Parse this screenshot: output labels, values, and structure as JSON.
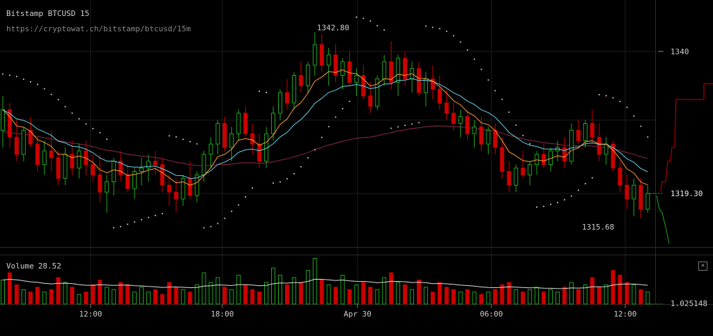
{
  "header": {
    "title": "Bitstamp BTCUSD 15",
    "url": "https://cryptowat.ch/bitstamp/btcusd/15m"
  },
  "volume": {
    "label": "Volume",
    "value": "28.52",
    "axis_label": "1.025148"
  },
  "colors": {
    "up": "#1fa81f",
    "down": "#cc0000",
    "ema_fast": "#ff9a3a",
    "ema_mid": "#66d4e8",
    "sma_slow": "#8c2a48",
    "sar": "#d8d8d8",
    "grid": "#1e1e1e",
    "vol_ma": "#dddddd",
    "depth": "#cc0000",
    "depth_bid": "#1fa81f"
  },
  "icons": {
    "close": "close-icon"
  },
  "chart_data": {
    "type": "candlestick",
    "title": "Bitstamp BTCUSD 15",
    "subtitle": "https://cryptowat.ch/bitstamp/btcusd/15m",
    "x_ticks": [
      "12:00",
      "18:00",
      "Apr 30",
      "06:00",
      "12:00"
    ],
    "y_ticks": [
      1340
    ],
    "ylim": [
      1311.5,
      1347.5
    ],
    "last_price": 1319.3,
    "annotations": [
      {
        "label": "1342.80",
        "kind": "high"
      },
      {
        "label": "1315.68",
        "kind": "low"
      }
    ],
    "candles": [
      [
        1328.5,
        1333.5,
        1326,
        1331.5,
        1.0
      ],
      [
        1331.5,
        1332.5,
        1326,
        1327.5,
        1.3
      ],
      [
        1327.5,
        1330,
        1324,
        1325,
        0.8
      ],
      [
        1325,
        1329,
        1324,
        1328.5,
        0.6
      ],
      [
        1328.5,
        1330.5,
        1326,
        1326.5,
        0.5
      ],
      [
        1326.5,
        1327.5,
        1322.5,
        1323.5,
        0.7
      ],
      [
        1323.5,
        1327,
        1322,
        1325.5,
        0.5
      ],
      [
        1325.5,
        1328.5,
        1322.5,
        1324.5,
        0.6
      ],
      [
        1324.5,
        1325.5,
        1320.5,
        1321.5,
        1.1
      ],
      [
        1321.5,
        1326,
        1320.5,
        1325,
        0.9
      ],
      [
        1325,
        1327,
        1322,
        1323,
        0.7
      ],
      [
        1323,
        1326.5,
        1321.5,
        1325.5,
        0.4
      ],
      [
        1325.5,
        1327,
        1322,
        1323.5,
        0.5
      ],
      [
        1323.5,
        1325,
        1321,
        1322,
        0.8
      ],
      [
        1322,
        1325,
        1318,
        1319.5,
        1.0
      ],
      [
        1319.5,
        1322,
        1316.5,
        1321,
        0.7
      ],
      [
        1321,
        1324.5,
        1319,
        1324,
        0.6
      ],
      [
        1324,
        1325.5,
        1321,
        1322,
        0.9
      ],
      [
        1322,
        1323.5,
        1319.5,
        1320,
        0.8
      ],
      [
        1320,
        1323,
        1318.5,
        1322.5,
        0.5
      ],
      [
        1322.5,
        1324.5,
        1320.5,
        1323,
        0.7
      ],
      [
        1323,
        1325,
        1321,
        1324,
        0.5
      ],
      [
        1324,
        1325.5,
        1322,
        1323.5,
        0.6
      ],
      [
        1323.5,
        1324.5,
        1319.5,
        1320.5,
        0.4
      ],
      [
        1320.5,
        1322,
        1317.5,
        1319.5,
        0.9
      ],
      [
        1319.5,
        1321.5,
        1316.5,
        1318.5,
        0.7
      ],
      [
        1318.5,
        1322,
        1317.5,
        1321.5,
        0.6
      ],
      [
        1321.5,
        1324,
        1318.5,
        1319,
        0.5
      ],
      [
        1319,
        1322.5,
        1318,
        1322,
        0.8
      ],
      [
        1322,
        1325.5,
        1321,
        1325,
        1.3
      ],
      [
        1325,
        1327.5,
        1323,
        1326.5,
        0.9
      ],
      [
        1326.5,
        1330,
        1325,
        1329.5,
        1.1
      ],
      [
        1329.5,
        1330.5,
        1325.5,
        1326,
        0.7
      ],
      [
        1326,
        1329,
        1324,
        1328,
        0.6
      ],
      [
        1328,
        1331.5,
        1327,
        1331,
        1.2
      ],
      [
        1331,
        1332,
        1327.5,
        1328,
        0.8
      ],
      [
        1328,
        1329.5,
        1325,
        1326.5,
        0.6
      ],
      [
        1326.5,
        1328,
        1323,
        1324,
        0.5
      ],
      [
        1324,
        1329,
        1323,
        1328,
        0.9
      ],
      [
        1328,
        1332,
        1327,
        1331,
        1.5
      ],
      [
        1331,
        1334.5,
        1330,
        1334,
        1.2
      ],
      [
        1334,
        1336,
        1331.5,
        1332.5,
        0.8
      ],
      [
        1332.5,
        1337,
        1331.5,
        1336.5,
        1.1
      ],
      [
        1336.5,
        1338.5,
        1334,
        1335,
        0.9
      ],
      [
        1335,
        1338.5,
        1334,
        1338,
        1.4
      ],
      [
        1338,
        1342.8,
        1336.5,
        1341,
        1.9
      ],
      [
        1341,
        1342.5,
        1337,
        1338,
        1.0
      ],
      [
        1338,
        1340.5,
        1335,
        1339.5,
        0.8
      ],
      [
        1339.5,
        1341,
        1335.5,
        1336.5,
        0.7
      ],
      [
        1336.5,
        1339,
        1334.5,
        1338.5,
        1.2
      ],
      [
        1338.5,
        1340,
        1335,
        1335.5,
        0.6
      ],
      [
        1335.5,
        1337.5,
        1333.5,
        1336.5,
        0.8
      ],
      [
        1336.5,
        1338,
        1333,
        1333.5,
        0.9
      ],
      [
        1333.5,
        1335.5,
        1331,
        1332,
        0.7
      ],
      [
        1332,
        1336.5,
        1331.5,
        1336,
        0.6
      ],
      [
        1336,
        1339.5,
        1335,
        1338.5,
        1.1
      ],
      [
        1338.5,
        1341.5,
        1334.5,
        1335.5,
        1.3
      ],
      [
        1335.5,
        1339.5,
        1333.5,
        1339,
        0.9
      ],
      [
        1339,
        1340,
        1335,
        1336,
        0.8
      ],
      [
        1336,
        1338.5,
        1334,
        1337.5,
        0.6
      ],
      [
        1337.5,
        1338.5,
        1333.5,
        1334,
        1.0
      ],
      [
        1334,
        1337,
        1332,
        1336,
        0.7
      ],
      [
        1336,
        1338,
        1333,
        1334.5,
        0.5
      ],
      [
        1334.5,
        1336.5,
        1331.5,
        1332.5,
        0.9
      ],
      [
        1332.5,
        1334.5,
        1330,
        1331,
        0.7
      ],
      [
        1331,
        1332.5,
        1328.5,
        1329.5,
        0.6
      ],
      [
        1329.5,
        1331.5,
        1327.5,
        1330.5,
        0.5
      ],
      [
        1330.5,
        1331.5,
        1327,
        1328,
        0.6
      ],
      [
        1328,
        1330,
        1326,
        1329,
        0.5
      ],
      [
        1329,
        1330.5,
        1325.5,
        1326.5,
        0.4
      ],
      [
        1326.5,
        1329,
        1325,
        1328.5,
        0.5
      ],
      [
        1328.5,
        1329.5,
        1325,
        1326,
        0.6
      ],
      [
        1326,
        1327.5,
        1321.5,
        1322.5,
        0.8
      ],
      [
        1322.5,
        1324,
        1319.5,
        1320.5,
        0.9
      ],
      [
        1320.5,
        1323.5,
        1319.5,
        1323,
        0.6
      ],
      [
        1323,
        1325.5,
        1321.5,
        1322,
        0.5
      ],
      [
        1322,
        1324,
        1320.5,
        1323.5,
        0.6
      ],
      [
        1323.5,
        1325.5,
        1322,
        1325,
        0.7
      ],
      [
        1325,
        1326.5,
        1323,
        1323.5,
        0.5
      ],
      [
        1323.5,
        1326,
        1322.5,
        1325.5,
        0.6
      ],
      [
        1325.5,
        1327,
        1324,
        1326,
        0.5
      ],
      [
        1326,
        1327.5,
        1323,
        1324,
        0.7
      ],
      [
        1324,
        1329.5,
        1323.5,
        1328.5,
        0.9
      ],
      [
        1328.5,
        1330,
        1326.5,
        1327,
        0.6
      ],
      [
        1327,
        1330,
        1326,
        1329.5,
        0.8
      ],
      [
        1329.5,
        1331.5,
        1326.5,
        1327.5,
        1.1
      ],
      [
        1327.5,
        1329.5,
        1324,
        1325,
        0.7
      ],
      [
        1325,
        1327.5,
        1323.5,
        1326.5,
        0.8
      ],
      [
        1326.5,
        1327,
        1322.5,
        1323,
        1.4
      ],
      [
        1323,
        1324,
        1319.5,
        1320.5,
        1.2
      ],
      [
        1320.5,
        1322,
        1317,
        1318.5,
        0.9
      ],
      [
        1318.5,
        1321.5,
        1316,
        1320.5,
        0.8
      ],
      [
        1320.5,
        1321.5,
        1315.68,
        1317,
        0.6
      ],
      [
        1317,
        1320.5,
        1316.5,
        1319.3,
        0.5
      ]
    ]
  }
}
